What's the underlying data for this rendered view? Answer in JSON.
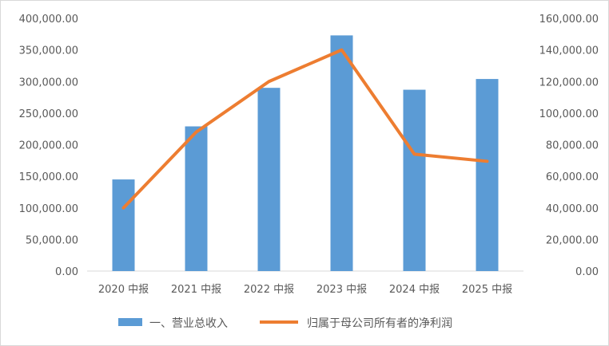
{
  "chart_data": {
    "type": "bar",
    "categories": [
      "2020 中报",
      "2021 中报",
      "2022 中报",
      "2023 中报",
      "2024 中报",
      "2025 中报"
    ],
    "series": [
      {
        "name": "一、营业总收入",
        "type": "bar",
        "axis": "left",
        "color": "#5b9bd5",
        "values": [
          145000,
          229000,
          290000,
          373000,
          287000,
          304000
        ]
      },
      {
        "name": "归属于母公司所有者的净利润",
        "type": "line",
        "axis": "right",
        "color": "#ed7d31",
        "values": [
          40000,
          88000,
          120000,
          140000,
          74000,
          69500
        ]
      }
    ],
    "y_left": {
      "lim": [
        0,
        400000
      ],
      "ticks": [
        "0.00",
        "50,000.00",
        "100,000.00",
        "150,000.00",
        "200,000.00",
        "250,000.00",
        "300,000.00",
        "350,000.00",
        "400,000.00"
      ]
    },
    "y_right": {
      "lim": [
        0,
        160000
      ],
      "ticks": [
        "0.00",
        "20,000.00",
        "40,000.00",
        "60,000.00",
        "80,000.00",
        "100,000.00",
        "120,000.00",
        "140,000.00",
        "160,000.00"
      ]
    },
    "grid": false,
    "legend": "bottom"
  }
}
